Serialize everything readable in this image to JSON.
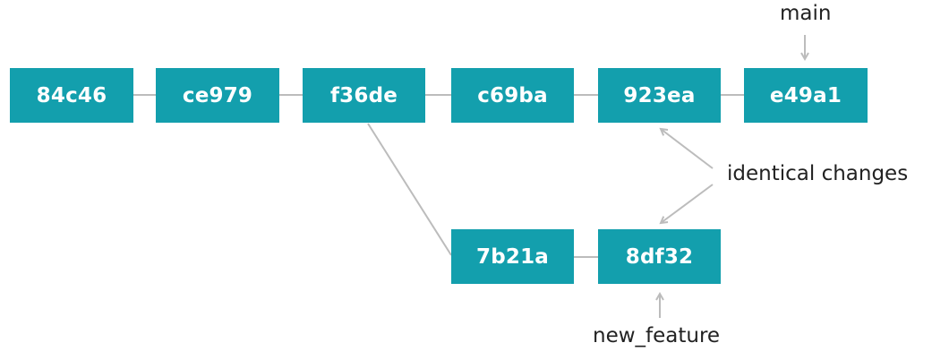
{
  "commits": {
    "c1": "84c46",
    "c2": "ce979",
    "c3": "f36de",
    "c4": "c69ba",
    "c5": "923ea",
    "c6": "e49a1",
    "b1": "7b21a",
    "b2": "8df32"
  },
  "labels": {
    "main_branch": "main",
    "feature_branch": "new_feature",
    "annotation": "identical changes"
  },
  "colors": {
    "commit_fill": "#139fad",
    "commit_text": "#ffffff",
    "connector": "#bcbcbc",
    "label_text": "#222222"
  }
}
